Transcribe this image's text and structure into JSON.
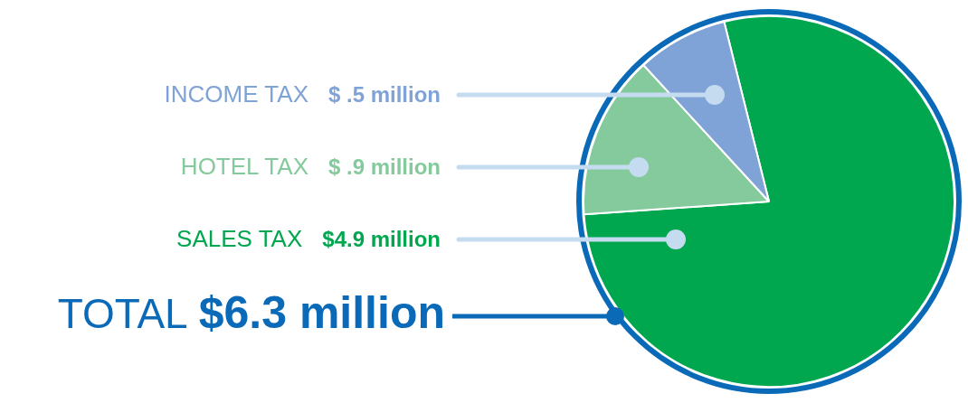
{
  "chart_data": {
    "type": "pie",
    "categories": [
      "SALES TAX",
      "HOTEL TAX",
      "INCOME TAX"
    ],
    "values": [
      4.9,
      0.9,
      0.5
    ],
    "colors": [
      "#00a74f",
      "#84ca9c",
      "#7fa3d6"
    ],
    "value_labels": [
      "$4.9 million",
      "$ .9 million",
      "$ .5 million"
    ],
    "annotations": [
      "TOTAL $6.3 million"
    ]
  }
}
